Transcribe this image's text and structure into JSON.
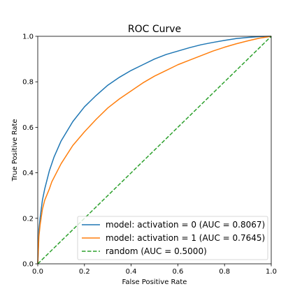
{
  "chart_data": {
    "type": "line",
    "title": "ROC Curve",
    "xlabel": "False Positive Rate",
    "ylabel": "True Positive Rate",
    "xlim": [
      0.0,
      1.0
    ],
    "ylim": [
      0.0,
      1.0
    ],
    "xticks": [
      "0.0",
      "0.2",
      "0.4",
      "0.6",
      "0.8",
      "1.0"
    ],
    "yticks": [
      "0.0",
      "0.2",
      "0.4",
      "0.6",
      "0.8",
      "1.0"
    ],
    "grid": false,
    "legend_position": "lower-right",
    "series": [
      {
        "name": "model: activation = 0 (AUC = 0.8067)",
        "color": "#1f77b4",
        "style": "solid",
        "x": [
          0.0,
          0.005,
          0.01,
          0.02,
          0.03,
          0.05,
          0.07,
          0.1,
          0.15,
          0.2,
          0.25,
          0.3,
          0.35,
          0.4,
          0.45,
          0.5,
          0.55,
          0.6,
          0.65,
          0.7,
          0.75,
          0.8,
          0.85,
          0.9,
          0.95,
          1.0
        ],
        "y": [
          0.0,
          0.15,
          0.2,
          0.28,
          0.33,
          0.41,
          0.47,
          0.54,
          0.625,
          0.69,
          0.74,
          0.785,
          0.82,
          0.85,
          0.875,
          0.9,
          0.92,
          0.935,
          0.95,
          0.963,
          0.973,
          0.982,
          0.99,
          0.995,
          0.999,
          1.0
        ]
      },
      {
        "name": "model: activation = 1 (AUC = 0.7645)",
        "color": "#ff7f0e",
        "style": "solid",
        "x": [
          0.0,
          0.005,
          0.01,
          0.02,
          0.03,
          0.05,
          0.06,
          0.1,
          0.15,
          0.2,
          0.25,
          0.3,
          0.35,
          0.4,
          0.45,
          0.5,
          0.55,
          0.6,
          0.65,
          0.7,
          0.75,
          0.8,
          0.85,
          0.9,
          0.95,
          1.0
        ],
        "y": [
          0.0,
          0.12,
          0.17,
          0.24,
          0.28,
          0.33,
          0.36,
          0.44,
          0.52,
          0.58,
          0.635,
          0.685,
          0.725,
          0.76,
          0.795,
          0.825,
          0.85,
          0.875,
          0.895,
          0.915,
          0.935,
          0.952,
          0.967,
          0.98,
          0.992,
          1.0
        ]
      },
      {
        "name": "random (AUC = 0.5000)",
        "color": "#2ca02c",
        "style": "dashed",
        "x": [
          0.0,
          1.0
        ],
        "y": [
          0.0,
          1.0
        ]
      }
    ]
  }
}
